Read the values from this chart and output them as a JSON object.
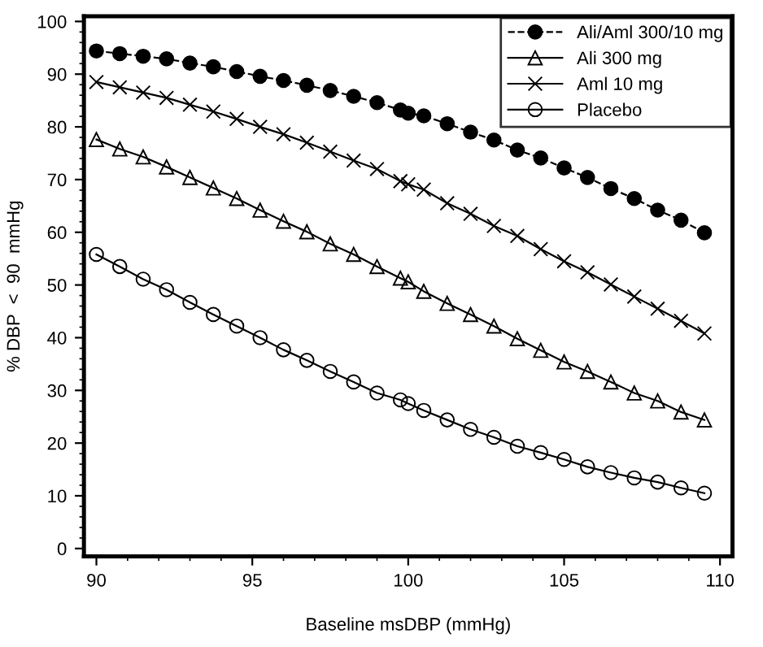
{
  "chart_data": {
    "type": "line",
    "xlabel": "Baseline msDBP (mmHg)",
    "ylabel": "% DBP  <  90  mmHg",
    "x": [
      90,
      90.75,
      91.5,
      92.25,
      93,
      93.75,
      94.5,
      95.25,
      96,
      96.75,
      97.5,
      98.25,
      99,
      99.75,
      100,
      100.5,
      101.25,
      102,
      102.75,
      103.5,
      104.25,
      105,
      105.75,
      106.5,
      107.25,
      108,
      108.75,
      109.5
    ],
    "series": [
      {
        "name": "Ali/Aml 300/10 mg",
        "color": "#000000",
        "marker": "circle",
        "line_style": "dashed",
        "values": [
          94.4,
          93.9,
          93.4,
          92.9,
          92.1,
          91.4,
          90.5,
          89.6,
          88.8,
          87.9,
          86.9,
          85.8,
          84.6,
          83.2,
          82.6,
          82.1,
          80.6,
          79.0,
          77.5,
          75.6,
          74.1,
          72.2,
          70.4,
          68.3,
          66.4,
          64.2,
          62.3,
          59.9
        ]
      },
      {
        "name": "Ali 300 mg",
        "color": "#000000",
        "marker": "triangle",
        "line_style": "solid",
        "values": [
          77.6,
          75.8,
          74.3,
          72.4,
          70.4,
          68.4,
          66.4,
          64.2,
          62.1,
          60.1,
          57.8,
          55.8,
          53.5,
          51.3,
          50.6,
          48.8,
          46.5,
          44.4,
          42.2,
          39.8,
          37.6,
          35.4,
          33.6,
          31.6,
          29.5,
          28.0,
          25.9,
          24.4
        ]
      },
      {
        "name": "Aml 10 mg",
        "color": "#000000",
        "marker": "cross",
        "line_style": "solid",
        "values": [
          88.5,
          87.5,
          86.5,
          85.5,
          84.2,
          82.9,
          81.5,
          80.0,
          78.6,
          77.0,
          75.3,
          73.6,
          72.0,
          69.7,
          69.1,
          68.1,
          65.5,
          63.5,
          61.2,
          59.3,
          56.8,
          54.5,
          52.4,
          50.1,
          47.8,
          45.5,
          43.2,
          40.8
        ]
      },
      {
        "name": "Placebo",
        "color": "#000000",
        "marker": "circle",
        "line_style": "solid",
        "values": [
          55.8,
          53.5,
          51.1,
          49.1,
          46.7,
          44.4,
          42.2,
          40.0,
          37.7,
          35.7,
          33.6,
          31.6,
          29.5,
          28.2,
          27.5,
          26.2,
          24.4,
          22.6,
          21.1,
          19.4,
          18.2,
          16.9,
          15.5,
          14.4,
          13.4,
          12.6,
          11.5,
          10.5
        ]
      }
    ],
    "xlim": [
      89.6,
      110.4
    ],
    "xticks": [
      90,
      95,
      100,
      105,
      110
    ],
    "ylim": [
      -1.5,
      101
    ],
    "yticks": [
      0,
      10,
      20,
      30,
      40,
      50,
      60,
      70,
      80,
      90,
      100
    ],
    "grid": false,
    "legend": "top right"
  }
}
